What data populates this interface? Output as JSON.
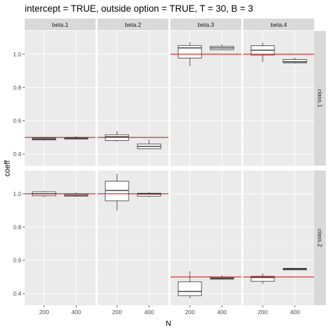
{
  "chart_data": {
    "type": "boxplot",
    "title": "intercept = TRUE, outside option = TRUE, T = 30, B = 3",
    "xlabel": "N",
    "ylabel": "coeff",
    "x_categories": [
      "200",
      "400"
    ],
    "column_facets": [
      "beta.1",
      "beta.2",
      "beta.3",
      "beta.4"
    ],
    "row_facets": [
      "class.1",
      "class.2"
    ],
    "y_ticks": [
      0.4,
      0.6,
      0.8,
      1.0
    ],
    "y_tick_labels": [
      "0.4",
      "0.6",
      "0.8",
      "1.0"
    ],
    "ylim": [
      0.33,
      1.14
    ],
    "grid": true,
    "colors": {
      "panel_bg": "#ebebeb",
      "grid_major": "#ffffff",
      "strip_bg": "#d9d9d9",
      "reference_line": "#cc0000",
      "box_fill": "#ffffff",
      "box_stroke": "#333333"
    },
    "panels": [
      {
        "row": "class.1",
        "col": "beta.1",
        "reference": 0.5,
        "boxes": [
          {
            "x": "200",
            "min": 0.481,
            "q1": 0.484,
            "median": 0.49,
            "q3": 0.496,
            "max": 0.5
          },
          {
            "x": "400",
            "min": 0.487,
            "q1": 0.49,
            "median": 0.495,
            "q3": 0.5,
            "max": 0.507
          }
        ]
      },
      {
        "row": "class.1",
        "col": "beta.2",
        "reference": 0.5,
        "boxes": [
          {
            "x": "200",
            "min": 0.474,
            "q1": 0.481,
            "median": 0.504,
            "q3": 0.516,
            "max": 0.538
          },
          {
            "x": "400",
            "min": 0.43,
            "q1": 0.432,
            "median": 0.446,
            "q3": 0.461,
            "max": 0.486
          }
        ]
      },
      {
        "row": "class.1",
        "col": "beta.3",
        "reference": 1.0,
        "boxes": [
          {
            "x": "200",
            "min": 0.929,
            "q1": 0.977,
            "median": 1.038,
            "q3": 1.052,
            "max": 1.073
          },
          {
            "x": "400",
            "min": 1.024,
            "q1": 1.027,
            "median": 1.038,
            "q3": 1.048,
            "max": 1.06
          }
        ]
      },
      {
        "row": "class.1",
        "col": "beta.4",
        "reference": 1.0,
        "boxes": [
          {
            "x": "200",
            "min": 0.953,
            "q1": 0.995,
            "median": 1.024,
            "q3": 1.051,
            "max": 1.071
          },
          {
            "x": "400",
            "min": 0.944,
            "q1": 0.948,
            "median": 0.955,
            "q3": 0.968,
            "max": 0.98
          }
        ]
      },
      {
        "row": "class.2",
        "col": "beta.1",
        "reference": 1.0,
        "boxes": [
          {
            "x": "200",
            "min": 0.98,
            "q1": 0.988,
            "median": 1.0,
            "q3": 1.012,
            "max": 1.017
          },
          {
            "x": "400",
            "min": 0.981,
            "q1": 0.986,
            "median": 0.992,
            "q3": 1.001,
            "max": 1.008
          }
        ]
      },
      {
        "row": "class.2",
        "col": "beta.2",
        "reference": 1.0,
        "boxes": [
          {
            "x": "200",
            "min": 0.898,
            "q1": 0.958,
            "median": 1.02,
            "q3": 1.076,
            "max": 1.12
          },
          {
            "x": "400",
            "min": 0.98,
            "q1": 0.986,
            "median": 0.998,
            "q3": 1.003,
            "max": 1.01
          }
        ]
      },
      {
        "row": "class.2",
        "col": "beta.3",
        "reference": 0.5,
        "boxes": [
          {
            "x": "200",
            "min": 0.371,
            "q1": 0.388,
            "median": 0.413,
            "q3": 0.471,
            "max": 0.535
          },
          {
            "x": "400",
            "min": 0.484,
            "q1": 0.487,
            "median": 0.492,
            "q3": 0.498,
            "max": 0.51
          }
        ]
      },
      {
        "row": "class.2",
        "col": "beta.4",
        "reference": 0.5,
        "boxes": [
          {
            "x": "200",
            "min": 0.458,
            "q1": 0.474,
            "median": 0.497,
            "q3": 0.504,
            "max": 0.522
          },
          {
            "x": "400",
            "min": 0.54,
            "q1": 0.542,
            "median": 0.548,
            "q3": 0.552,
            "max": 0.554
          }
        ]
      }
    ]
  }
}
